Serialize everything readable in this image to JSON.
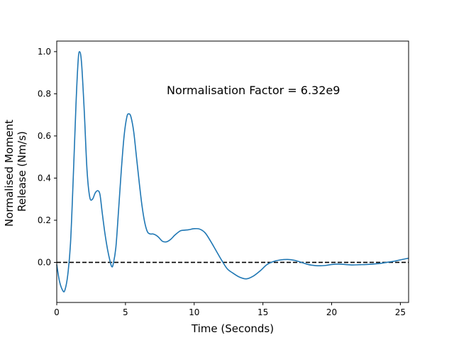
{
  "chart_data": {
    "type": "line",
    "title": "",
    "xlabel": "Time (Seconds)",
    "ylabel_lines": [
      "Normalised Moment",
      "Release (Nm/s)"
    ],
    "annotation": "Normalisation Factor = 6.32e9",
    "xlim": [
      0,
      25.6
    ],
    "ylim": [
      -0.19,
      1.05
    ],
    "xticks": [
      0,
      5,
      10,
      15,
      20,
      25
    ],
    "yticks": [
      0.0,
      0.2,
      0.4,
      0.6,
      0.8,
      1.0
    ],
    "xtick_labels": [
      "0",
      "5",
      "10",
      "15",
      "20",
      "25"
    ],
    "ytick_labels": [
      "0.0",
      "0.2",
      "0.4",
      "0.6",
      "0.8",
      "1.0"
    ],
    "reference_line": {
      "y": 0,
      "style": "dashed",
      "color": "#000000"
    },
    "series": [
      {
        "color": "#1f77b4",
        "x": [
          0,
          0.2,
          0.45,
          0.6,
          0.8,
          1.0,
          1.2,
          1.4,
          1.55,
          1.65,
          1.8,
          2.0,
          2.2,
          2.4,
          2.6,
          2.8,
          3.0,
          3.15,
          3.3,
          3.5,
          3.7,
          3.9,
          4.0,
          4.1,
          4.3,
          4.5,
          4.7,
          4.9,
          5.1,
          5.25,
          5.4,
          5.6,
          5.8,
          6.0,
          6.2,
          6.4,
          6.6,
          6.8,
          7.0,
          7.2,
          7.4,
          7.7,
          8.0,
          8.3,
          8.6,
          9.0,
          9.3,
          9.6,
          10.0,
          10.4,
          10.8,
          11.2,
          11.6,
          12.0,
          12.4,
          12.8,
          13.3,
          13.8,
          14.3,
          14.8,
          15.3,
          15.8,
          16.3,
          16.8,
          17.3,
          17.8,
          18.3,
          18.8,
          19.2,
          19.6,
          20.0,
          20.5,
          21.0,
          21.5,
          22.0,
          22.5,
          23.0,
          23.5,
          24.0,
          24.5,
          25.0,
          25.6
        ],
        "y": [
          -0.01,
          -0.09,
          -0.135,
          -0.13,
          -0.06,
          0.09,
          0.4,
          0.75,
          0.95,
          1.0,
          0.95,
          0.72,
          0.44,
          0.31,
          0.3,
          0.33,
          0.34,
          0.32,
          0.24,
          0.14,
          0.06,
          0.0,
          -0.02,
          -0.01,
          0.07,
          0.25,
          0.44,
          0.6,
          0.69,
          0.705,
          0.69,
          0.62,
          0.5,
          0.38,
          0.27,
          0.19,
          0.145,
          0.135,
          0.135,
          0.13,
          0.12,
          0.1,
          0.098,
          0.11,
          0.13,
          0.15,
          0.153,
          0.155,
          0.16,
          0.158,
          0.14,
          0.1,
          0.055,
          0.01,
          -0.03,
          -0.05,
          -0.07,
          -0.078,
          -0.065,
          -0.04,
          -0.01,
          0.005,
          0.012,
          0.014,
          0.01,
          0.0,
          -0.01,
          -0.015,
          -0.016,
          -0.014,
          -0.01,
          -0.008,
          -0.01,
          -0.012,
          -0.011,
          -0.01,
          -0.008,
          -0.005,
          0.0,
          0.005,
          0.012,
          0.02
        ]
      }
    ]
  }
}
